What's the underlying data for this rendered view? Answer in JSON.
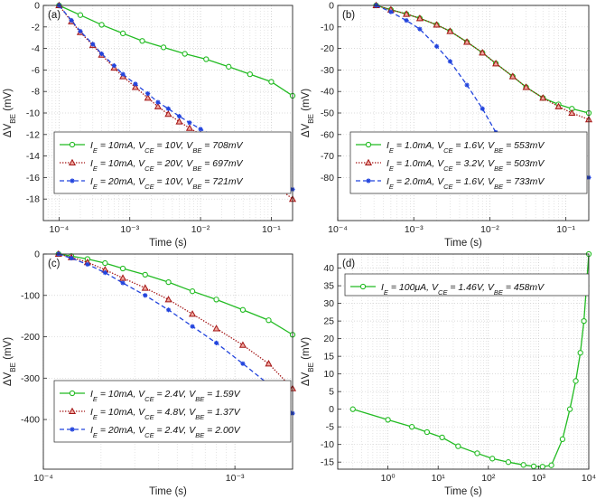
{
  "chart_data": [
    {
      "panel_label": "(a)",
      "type": "line",
      "xscale": "log",
      "xlim": [
        6e-05,
        0.2
      ],
      "ylim": [
        -20,
        0
      ],
      "yticks": [
        0,
        -2,
        -4,
        -6,
        -8,
        -10,
        -12,
        -14,
        -16,
        -18
      ],
      "xticks": [
        0.0001,
        0.001,
        0.01,
        0.1
      ],
      "xticklabels": [
        "10⁻⁴",
        "10⁻³",
        "10⁻²",
        "10⁻¹"
      ],
      "xlabel": "Time (s)",
      "ylabel": "ΔV",
      "ylabel_sub": "BE",
      "ylabel_unit": " (mV)",
      "legend": "bottom-right",
      "series": [
        {
          "name": "I_E = 10mA, V_CE = 10V, V_BE = 708mV",
          "color": "#22bb22",
          "style": "solid",
          "marker": "circle",
          "x": [
            0.0001,
            0.0002,
            0.0004,
            0.0008,
            0.0015,
            0.003,
            0.006,
            0.012,
            0.025,
            0.05,
            0.1,
            0.2
          ],
          "y": [
            0,
            -0.9,
            -1.8,
            -2.6,
            -3.3,
            -3.9,
            -4.5,
            -5.0,
            -5.7,
            -6.4,
            -7.1,
            -8.4
          ]
        },
        {
          "name": "I_E = 10mA, V_CE = 20V, V_BE = 697mV",
          "color": "#a31515",
          "style": "dotted",
          "marker": "triangle",
          "x": [
            0.0001,
            0.00015,
            0.0002,
            0.0003,
            0.0004,
            0.0006,
            0.0008,
            0.0012,
            0.0018,
            0.0025,
            0.0035,
            0.005,
            0.007,
            0.01,
            0.015,
            0.02,
            0.03,
            0.045,
            0.065,
            0.1,
            0.2
          ],
          "y": [
            0,
            -1.5,
            -2.5,
            -3.7,
            -4.6,
            -5.8,
            -6.6,
            -7.6,
            -8.6,
            -9.4,
            -10.1,
            -10.8,
            -11.4,
            -12.0,
            -12.6,
            -13.1,
            -13.6,
            -14.4,
            -15.2,
            -16.4,
            -18.0
          ]
        },
        {
          "name": "I_E = 20mA, V_CE = 10V, V_BE = 721mV",
          "color": "#2244dd",
          "style": "dashed",
          "marker": "star",
          "x": [
            0.0001,
            0.00015,
            0.0002,
            0.0003,
            0.0004,
            0.0006,
            0.0008,
            0.0012,
            0.0018,
            0.0025,
            0.0035,
            0.005,
            0.007,
            0.01,
            0.015,
            0.02,
            0.03,
            0.045,
            0.065,
            0.1,
            0.2
          ],
          "y": [
            0,
            -1.4,
            -2.4,
            -3.6,
            -4.5,
            -5.6,
            -6.4,
            -7.3,
            -8.2,
            -9.0,
            -9.6,
            -10.3,
            -10.9,
            -11.5,
            -12.1,
            -12.6,
            -13.1,
            -13.8,
            -14.5,
            -15.5,
            -17.1
          ]
        }
      ]
    },
    {
      "panel_label": "(b)",
      "type": "line",
      "xscale": "log",
      "xlim": [
        0.0001,
        0.2
      ],
      "ylim": [
        -100,
        0
      ],
      "yticks": [
        0,
        -10,
        -20,
        -30,
        -40,
        -50,
        -60,
        -70,
        -80
      ],
      "xticks": [
        0.0001,
        0.001,
        0.01,
        0.1
      ],
      "xticklabels": [
        "10⁻⁴",
        "10⁻³",
        "10⁻²",
        "10⁻¹"
      ],
      "xlabel": "Time (s)",
      "ylabel": "ΔV",
      "ylabel_sub": "BE",
      "ylabel_unit": " (mV)",
      "legend": "bottom-right",
      "series": [
        {
          "name": "I_E = 1.0mA, V_CE = 1.6V, V_BE = 553mV",
          "color": "#22bb22",
          "style": "solid",
          "marker": "circle",
          "x": [
            0.00032,
            0.0005,
            0.0008,
            0.0012,
            0.002,
            0.003,
            0.005,
            0.008,
            0.012,
            0.02,
            0.03,
            0.05,
            0.08,
            0.12,
            0.2
          ],
          "y": [
            0,
            -2,
            -4,
            -6,
            -9,
            -12,
            -17,
            -22,
            -27,
            -33,
            -38,
            -43,
            -46,
            -48,
            -50
          ]
        },
        {
          "name": "I_E = 1.0mA, V_CE = 3.2V, V_BE = 503mV",
          "color": "#a31515",
          "style": "dotted",
          "marker": "triangle",
          "x": [
            0.00032,
            0.0005,
            0.0008,
            0.0012,
            0.002,
            0.003,
            0.005,
            0.008,
            0.012,
            0.02,
            0.03,
            0.05,
            0.08,
            0.12,
            0.2
          ],
          "y": [
            0,
            -2,
            -4,
            -6,
            -9,
            -12,
            -17,
            -22,
            -27,
            -33,
            -38,
            -43,
            -47,
            -50,
            -53
          ]
        },
        {
          "name": "I_E = 2.0mA, V_CE = 1.6V, V_BE = 733mV",
          "color": "#2244dd",
          "style": "dashed",
          "marker": "star",
          "x": [
            0.00032,
            0.0005,
            0.0008,
            0.0012,
            0.002,
            0.003,
            0.005,
            0.008,
            0.012,
            0.02,
            0.03,
            0.05,
            0.08,
            0.12,
            0.2
          ],
          "y": [
            0,
            -3,
            -7,
            -11,
            -19,
            -26,
            -37,
            -48,
            -59,
            -67,
            -73,
            -77,
            -79,
            -80,
            -80
          ]
        }
      ]
    },
    {
      "panel_label": "(c)",
      "type": "line",
      "xscale": "log",
      "xlim": [
        0.0001,
        0.002
      ],
      "ylim": [
        -520,
        0
      ],
      "yticks": [
        0,
        -100,
        -200,
        -300,
        -400
      ],
      "xticks": [
        0.0001,
        0.001
      ],
      "xticklabels": [
        "10⁻⁴",
        "10⁻³"
      ],
      "xlabel": "Time (s)",
      "ylabel": "ΔV",
      "ylabel_sub": "BE",
      "ylabel_unit": " (mV)",
      "legend": "bottom-right",
      "series": [
        {
          "name": "I_E = 10mA, V_CE = 2.4V, V_BE = 1.59V",
          "color": "#22bb22",
          "style": "solid",
          "marker": "circle",
          "x": [
            0.00012,
            0.00014,
            0.00017,
            0.00021,
            0.00026,
            0.00034,
            0.00045,
            0.0006,
            0.0008,
            0.0011,
            0.0015,
            0.002
          ],
          "y": [
            0,
            -5,
            -12,
            -22,
            -35,
            -50,
            -68,
            -90,
            -110,
            -135,
            -160,
            -195
          ]
        },
        {
          "name": "I_E = 10mA, V_CE = 4.8V, V_BE = 1.37V",
          "color": "#a31515",
          "style": "dotted",
          "marker": "triangle",
          "x": [
            0.00012,
            0.00014,
            0.00017,
            0.00021,
            0.00026,
            0.00034,
            0.00045,
            0.0006,
            0.0008,
            0.0011,
            0.0015,
            0.002
          ],
          "y": [
            0,
            -8,
            -20,
            -38,
            -58,
            -82,
            -110,
            -145,
            -180,
            -220,
            -265,
            -325
          ]
        },
        {
          "name": "I_E = 20mA, V_CE = 2.4V, V_BE = 2.00V",
          "color": "#2244dd",
          "style": "dashed",
          "marker": "star",
          "x": [
            0.00012,
            0.00014,
            0.00017,
            0.00021,
            0.00026,
            0.00034,
            0.00045,
            0.0006,
            0.0008,
            0.0011,
            0.0015,
            0.002
          ],
          "y": [
            0,
            -10,
            -25,
            -45,
            -70,
            -100,
            -135,
            -175,
            -215,
            -265,
            -315,
            -385
          ]
        }
      ]
    },
    {
      "panel_label": "(d)",
      "type": "line",
      "xscale": "log",
      "xlim": [
        0.1,
        10000
      ],
      "ylim": [
        -17,
        44
      ],
      "yticks": [
        40,
        35,
        30,
        25,
        20,
        15,
        10,
        5,
        0,
        -5,
        -10,
        -15
      ],
      "xticks": [
        1,
        10,
        100,
        1000,
        10000
      ],
      "xticklabels": [
        "10⁰",
        "10¹",
        "10²",
        "10³",
        "10⁴"
      ],
      "xlabel": "Time (s)",
      "ylabel": "ΔV",
      "ylabel_sub": "BE",
      "ylabel_unit": " (mV)",
      "legend": "top-left",
      "series": [
        {
          "name": "I_E = 100μA, V_CE = 1.46V, V_BE = 458mV",
          "color": "#22bb22",
          "style": "solid",
          "marker": "circle",
          "x": [
            0.2,
            1,
            3,
            6,
            12,
            25,
            60,
            120,
            250,
            500,
            800,
            1200,
            1800,
            3000,
            4200,
            5500,
            6800,
            8000,
            9000,
            10000
          ],
          "y": [
            0,
            -3,
            -5,
            -6.5,
            -8,
            -10.5,
            -12.5,
            -14,
            -15,
            -15.8,
            -16.2,
            -16.3,
            -15.9,
            -8.5,
            0,
            8,
            16,
            25,
            35,
            44
          ]
        }
      ]
    }
  ]
}
